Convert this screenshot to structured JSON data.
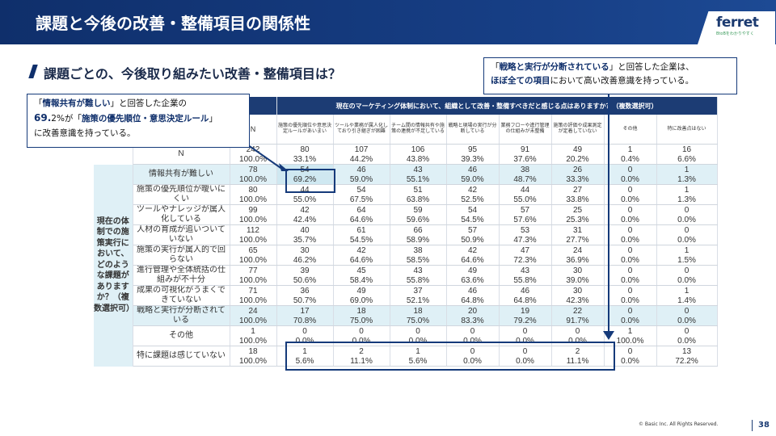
{
  "header": {
    "title": "課題と今後の改善・整備項目の関係性"
  },
  "logo": {
    "name": "ferret",
    "tagline": "BtoBをわかりやすく"
  },
  "subtitle": "課題ごとの、今後取り組みたい改善・整備項目は？",
  "callout_left": {
    "line1_a": "「",
    "line1_b": "情報共有が難しい",
    "line1_c": "」と回答した企業の",
    "line2_a": "69.",
    "line2_b": "2%が「",
    "line2_c": "施策の優先順位・意思決定ルール",
    "line2_d": "」",
    "line3": "に改善意識を持っている。"
  },
  "callout_right": {
    "line1_a": "「",
    "line1_b": "戦略と実行が分断されている",
    "line1_c": "」と回答した企業は、",
    "line2_b": "ほぼ全ての項目",
    "line2_c": "において高い改善意識を持っている。"
  },
  "table": {
    "question": "現在のマーケティング体制において、組織として改善・整備すべきだと感じる点はありますか？（複数選択可）",
    "side_label": "現在の体制での施策実行において、どのような課題がありますか？（複数選択可）",
    "n_header": "N",
    "columns": [
      "施策の優先順位や意思決定ルールがあいまい",
      "ツールや業務が属人化しており引き継ぎが困難",
      "チーム間の情報共有や施策の連携が不足している",
      "戦略と現場の実行が分断している",
      "業務フローや進行管理の仕組みが未整備",
      "施策の評価や成果測定が定着していない",
      "その他",
      "特に改善点はない"
    ],
    "total": {
      "label": "N",
      "n": "242",
      "nums": [
        "80",
        "107",
        "106",
        "95",
        "91",
        "49",
        "1",
        "16"
      ],
      "n_pct": "100.0%",
      "pcts": [
        "33.1%",
        "44.2%",
        "43.8%",
        "39.3%",
        "37.6%",
        "20.2%",
        "0.4%",
        "6.6%"
      ]
    },
    "rows": [
      {
        "label": "情報共有が難しい",
        "n": "78",
        "nums": [
          "54",
          "46",
          "43",
          "46",
          "38",
          "26",
          "0",
          "1"
        ],
        "n_pct": "100.0%",
        "pcts": [
          "69.2%",
          "59.0%",
          "55.1%",
          "59.0%",
          "48.7%",
          "33.3%",
          "0.0%",
          "1.3%"
        ]
      },
      {
        "label": "施策の優先順位が曖いにくい",
        "n": "80",
        "nums": [
          "44",
          "54",
          "51",
          "42",
          "44",
          "27",
          "0",
          "1"
        ],
        "n_pct": "100.0%",
        "pcts": [
          "55.0%",
          "67.5%",
          "63.8%",
          "52.5%",
          "55.0%",
          "33.8%",
          "0.0%",
          "1.3%"
        ]
      },
      {
        "label": "ツールやナレッジが属人化している",
        "n": "99",
        "nums": [
          "42",
          "64",
          "59",
          "54",
          "57",
          "25",
          "0",
          "0"
        ],
        "n_pct": "100.0%",
        "pcts": [
          "42.4%",
          "64.6%",
          "59.6%",
          "54.5%",
          "57.6%",
          "25.3%",
          "0.0%",
          "0.0%"
        ]
      },
      {
        "label": "人材の育成が追いついていない",
        "n": "112",
        "nums": [
          "40",
          "61",
          "66",
          "57",
          "53",
          "31",
          "0",
          "0"
        ],
        "n_pct": "100.0%",
        "pcts": [
          "35.7%",
          "54.5%",
          "58.9%",
          "50.9%",
          "47.3%",
          "27.7%",
          "0.0%",
          "0.0%"
        ]
      },
      {
        "label": "施策の実行が属人的で回らない",
        "n": "65",
        "nums": [
          "30",
          "42",
          "38",
          "42",
          "47",
          "24",
          "0",
          "1"
        ],
        "n_pct": "100.0%",
        "pcts": [
          "46.2%",
          "64.6%",
          "58.5%",
          "64.6%",
          "72.3%",
          "36.9%",
          "0.0%",
          "1.5%"
        ]
      },
      {
        "label": "進行管理や全体統括の仕組みが不十分",
        "n": "77",
        "nums": [
          "39",
          "45",
          "43",
          "49",
          "43",
          "30",
          "0",
          "0"
        ],
        "n_pct": "100.0%",
        "pcts": [
          "50.6%",
          "58.4%",
          "55.8%",
          "63.6%",
          "55.8%",
          "39.0%",
          "0.0%",
          "0.0%"
        ]
      },
      {
        "label": "成果の可視化がうまくできていない",
        "n": "71",
        "nums": [
          "36",
          "49",
          "37",
          "46",
          "46",
          "30",
          "0",
          "1"
        ],
        "n_pct": "100.0%",
        "pcts": [
          "50.7%",
          "69.0%",
          "52.1%",
          "64.8%",
          "64.8%",
          "42.3%",
          "0.0%",
          "1.4%"
        ]
      },
      {
        "label": "戦略と実行が分断されている",
        "n": "24",
        "nums": [
          "17",
          "18",
          "18",
          "20",
          "19",
          "22",
          "0",
          "0"
        ],
        "n_pct": "100.0%",
        "pcts": [
          "70.8%",
          "75.0%",
          "75.0%",
          "83.3%",
          "79.2%",
          "91.7%",
          "0.0%",
          "0.0%"
        ]
      },
      {
        "label": "その他",
        "n": "1",
        "nums": [
          "0",
          "0",
          "0",
          "0",
          "0",
          "0",
          "1",
          "0"
        ],
        "n_pct": "100.0%",
        "pcts": [
          "0.0%",
          "0.0%",
          "0.0%",
          "0.0%",
          "0.0%",
          "0.0%",
          "100.0%",
          "0.0%"
        ]
      },
      {
        "label": "特に課題は感じていない",
        "n": "18",
        "nums": [
          "1",
          "2",
          "1",
          "0",
          "0",
          "2",
          "0",
          "13"
        ],
        "n_pct": "100.0%",
        "pcts": [
          "5.6%",
          "11.1%",
          "5.6%",
          "0.0%",
          "0.0%",
          "11.1%",
          "0.0%",
          "72.2%"
        ]
      }
    ]
  },
  "footer": {
    "copyright": "© Basic Inc. All Rights Reserved.",
    "page": "38"
  }
}
